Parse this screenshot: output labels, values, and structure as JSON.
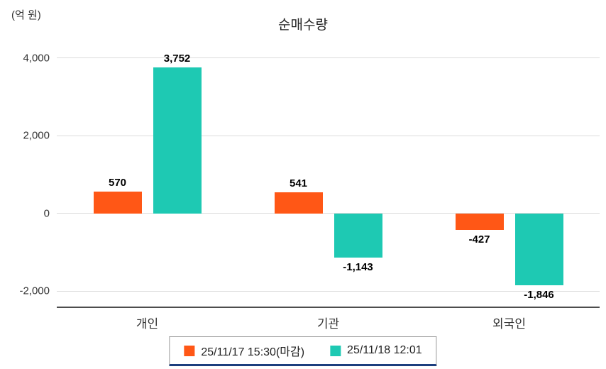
{
  "chart_data": {
    "type": "bar",
    "title": "순매수량",
    "ylabel": "(억 원)",
    "categories": [
      "개인",
      "기관",
      "외국인"
    ],
    "series": [
      {
        "name": "25/11/17 15:30(마감)",
        "color": "#ff5716",
        "values": [
          570,
          541,
          -427
        ],
        "labels": [
          "570",
          "541",
          "-427"
        ]
      },
      {
        "name": "25/11/18 12:01",
        "color": "#1ec9b3",
        "values": [
          3752,
          -1143,
          -1846
        ],
        "labels": [
          "3,752",
          "-1,143",
          "-1,846"
        ]
      }
    ],
    "y_ticks": [
      "4,000",
      "2,000",
      "0",
      "-2,000"
    ],
    "y_tick_values": [
      4000,
      2000,
      0,
      -2000
    ],
    "ylim": [
      -2400,
      4400
    ],
    "grid": true,
    "legend_position": "bottom",
    "colors": {
      "gridline": "#dcdcdc",
      "axis_bottom": "#4d4d4d",
      "legend_border": "#9a9a9a",
      "legend_underline": "#1c3e7e",
      "text": "#222222"
    }
  }
}
